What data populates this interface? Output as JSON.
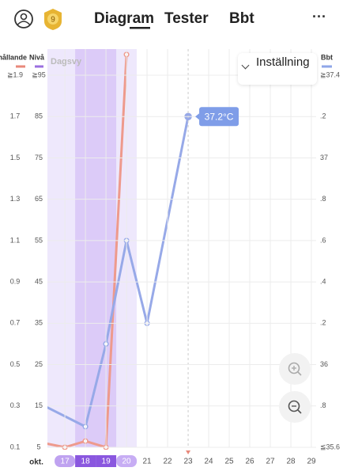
{
  "header": {
    "badge": "9",
    "tabs": [
      "Diagram",
      "Tester",
      "Bbt"
    ],
    "active_tab": 0,
    "menu": "···"
  },
  "chart": {
    "view_label": "Dagsvy",
    "settings_button": "Inställning",
    "legend": [
      {
        "name": "hållande",
        "color": "#e8897b"
      },
      {
        "name": "Nivå",
        "color": "#9b6fe0"
      },
      {
        "name": "Bbt",
        "color": "#8fa6e8"
      }
    ],
    "xlim": [
      16.15,
      29.23
    ],
    "month_label": "okt.",
    "xticks": [
      17,
      18,
      19,
      20,
      21,
      22,
      23,
      24,
      25,
      26,
      27,
      28,
      29
    ],
    "today": 23,
    "ratio_axis": {
      "ylim": [
        0.1,
        1.9
      ],
      "yticks": [
        {
          "value": 1.9,
          "label": "≧1.9"
        },
        1.7,
        1.5,
        1.3,
        1.1,
        0.9,
        0.7,
        0.5,
        0.3,
        0.1
      ]
    },
    "level_axis": {
      "ylim": [
        5,
        95
      ],
      "yticks": [
        {
          "value": 95,
          "label": "≧95"
        },
        85,
        75,
        65,
        55,
        45,
        35,
        25,
        15,
        5
      ]
    },
    "bbt_axis": {
      "ylim": [
        35.6,
        37.4
      ],
      "yticks": [
        {
          "value": 37.4,
          "label": "≧37.4"
        },
        {
          "value": 37.2,
          "label": ".2"
        },
        37,
        {
          "value": 36.8,
          "label": ".8"
        },
        {
          "value": 36.6,
          "label": ".6"
        },
        {
          "value": 36.4,
          "label": ".4"
        },
        {
          "value": 36.2,
          "label": ".2"
        },
        36,
        {
          "value": 35.8,
          "label": ".8"
        },
        {
          "value": 35.6,
          "label": "≦35.6"
        }
      ]
    },
    "bands": [
      {
        "start": 16,
        "end": 20,
        "color": "#eee8fc"
      },
      {
        "start": 18,
        "end": 19,
        "color": "#dccbf8"
      }
    ],
    "highlight_days": [
      {
        "day": 17,
        "color": "#bfa2f0"
      },
      {
        "day": 18,
        "color": "#8a57df"
      },
      {
        "day": 19,
        "color": "#8a57df"
      },
      {
        "day": 20,
        "color": "#c7adf4"
      }
    ],
    "series": [
      {
        "name": "hållande",
        "axis": "ratio_axis",
        "color": "#ee9a8c",
        "x": [
          16,
          17,
          18,
          19,
          20
        ],
        "values": [
          0.12,
          0.1,
          0.13,
          0.1,
          2.0
        ]
      },
      {
        "name": "Bbt",
        "axis": "bbt_axis",
        "color": "#97a9e8",
        "x": [
          16,
          18,
          19,
          20,
          21,
          23
        ],
        "values": [
          35.8,
          35.7,
          36.1,
          36.6,
          36.2,
          37.2
        ]
      }
    ],
    "tooltip": "37.2°C"
  }
}
